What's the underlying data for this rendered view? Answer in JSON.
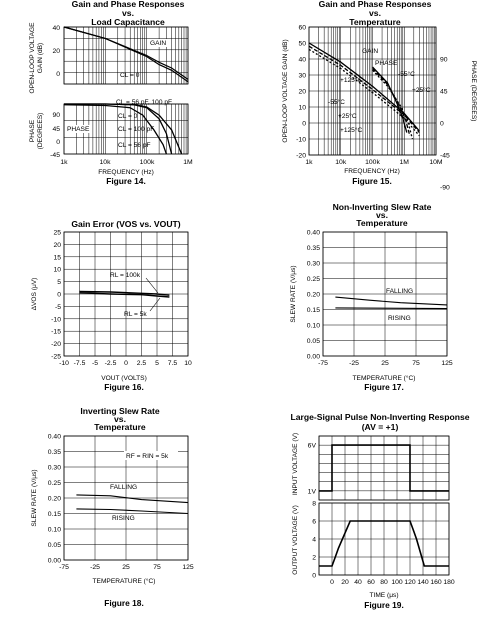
{
  "chart_data": [
    {
      "id": "fig14",
      "type": "line",
      "title": [
        "Gain and Phase Responses",
        "vs.",
        "Load Capacitance"
      ],
      "figure": "Figure 14.",
      "xlabel": "FREQUENCY (Hz)",
      "xscale": "log",
      "xlim": [
        1000,
        1000000
      ],
      "x_ticks": [
        "1k",
        "10k",
        "100k",
        "1M"
      ],
      "top": {
        "ylabel": [
          "OPEN-LOOP VOLTAGE",
          "GAIN (dB)"
        ],
        "ylim": [
          -10,
          40
        ],
        "y_ticks": [
          "40",
          "20",
          "0"
        ],
        "series": [
          {
            "x": [
              1000,
              10000,
              100000,
              200000,
              400000,
              1000000
            ],
            "values": [
              40,
              30,
              14,
              7,
              2,
              -8
            ]
          },
          {
            "x": [
              1000,
              10000,
              100000,
              200000,
              400000,
              1000000
            ],
            "values": [
              40,
              30,
              15,
              9,
              4,
              -6
            ]
          }
        ]
      },
      "bottom": {
        "ylabel": [
          "PHASE",
          "(DEGREES)"
        ],
        "ylim": [
          -45,
          90
        ],
        "y_ticks": [
          "90",
          "45",
          "0",
          "-45"
        ],
        "series": [
          {
            "x": [
              1000,
              10000,
              50000,
              100000,
              200000,
              400000,
              700000
            ],
            "values": [
              90,
              90,
              88,
              82,
              60,
              20,
              -45
            ]
          },
          {
            "x": [
              1000,
              10000,
              50000,
              100000,
              200000,
              300000,
              400000
            ],
            "values": [
              90,
              90,
              88,
              80,
              50,
              10,
              -45
            ]
          },
          {
            "x": [
              1000,
              10000,
              40000,
              80000,
              150000,
              250000,
              300000
            ],
            "values": [
              88,
              86,
              80,
              60,
              20,
              -20,
              -45
            ]
          }
        ]
      },
      "annotations": [
        "GAIN",
        "PHASE",
        "CL = 0",
        "CL = 56 pF, 100 pF",
        "CL = 100 pF",
        "CL = 56 pF",
        "CL = 0"
      ]
    },
    {
      "id": "fig15",
      "type": "line",
      "title": [
        "Gain and Phase Responses",
        "vs.",
        "Temperature"
      ],
      "figure": "Figure 15.",
      "xlabel": "FREQUENCY (Hz)",
      "xscale": "log",
      "xlim": [
        1000,
        10000000
      ],
      "x_ticks": [
        "1k",
        "10k",
        "100k",
        "1M",
        "10M"
      ],
      "ylabel": "OPEN-LOOP VOLTAGE GAIN (dB)",
      "ylim": [
        -20,
        60
      ],
      "y_ticks": [
        "60",
        "50",
        "40",
        "30",
        "20",
        "10",
        "0",
        "-10",
        "-20"
      ],
      "y2label": "PHASE (DEGREES)",
      "y2_ticks": [
        "90",
        "45",
        "0",
        "-45",
        "-90"
      ],
      "series": [
        {
          "name": "-55°C",
          "x": [
            1000,
            10000,
            100000,
            1000000,
            3000000
          ],
          "values": [
            50,
            38,
            23,
            6,
            -5
          ]
        },
        {
          "name": "+25°C",
          "x": [
            1000,
            10000,
            100000,
            1000000,
            3000000
          ],
          "values": [
            48,
            36,
            21,
            5,
            -6
          ]
        },
        {
          "name": "+125°C",
          "x": [
            1000,
            10000,
            100000,
            1000000,
            3000000
          ],
          "values": [
            46,
            34,
            19,
            3,
            -8
          ]
        }
      ],
      "annotations": [
        "GAIN",
        "PHASE",
        "-55°C",
        "+25°C",
        "+125°C",
        "-55°C",
        "+25°C",
        "+125°C"
      ]
    },
    {
      "id": "fig16",
      "type": "line",
      "title": "Gain Error (VOS vs. VOUT)",
      "figure": "Figure 16.",
      "xlabel": "VOUT (VOLTS)",
      "ylabel": "ΔVOS (μV)",
      "xlim": [
        -10,
        10
      ],
      "ylim": [
        -25,
        25
      ],
      "x_ticks": [
        "-10",
        "-7.5",
        "-5",
        "-2.5",
        "0",
        "2.5",
        "5",
        "7.5",
        "10"
      ],
      "y_ticks": [
        "25",
        "20",
        "15",
        "10",
        "5",
        "0",
        "-5",
        "-10",
        "-15",
        "-20",
        "-25"
      ],
      "series": [
        {
          "name": "RL = 100k",
          "x": [
            -7.5,
            -2.5,
            2.5,
            5,
            7
          ],
          "values": [
            1,
            0.8,
            0.3,
            0,
            -0.5
          ]
        },
        {
          "name": "RL = 5k",
          "x": [
            -7.5,
            -2.5,
            2.5,
            5,
            7
          ],
          "values": [
            0.5,
            0,
            -0.3,
            -0.8,
            -1.2
          ]
        }
      ],
      "annotations": [
        "RL = 100k",
        "RL = 5k"
      ]
    },
    {
      "id": "fig17",
      "type": "line",
      "title": [
        "Non-Inverting Slew Rate",
        "vs.",
        "Temperature"
      ],
      "figure": "Figure 17.",
      "xlabel": "TEMPERATURE (°C)",
      "ylabel": "SLEW RATE (V/μs)",
      "xlim": [
        -75,
        125
      ],
      "ylim": [
        0,
        0.4
      ],
      "x_ticks": [
        "-75",
        "-25",
        "25",
        "75",
        "125"
      ],
      "y_ticks": [
        "0.40",
        "0.35",
        "0.30",
        "0.25",
        "0.20",
        "0.15",
        "0.10",
        "0.05",
        "0.00"
      ],
      "series": [
        {
          "name": "FALLING",
          "x": [
            -55,
            0,
            50,
            125
          ],
          "values": [
            0.19,
            0.18,
            0.172,
            0.165
          ]
        },
        {
          "name": "RISING",
          "x": [
            -55,
            125
          ],
          "values": [
            0.155,
            0.153
          ]
        }
      ]
    },
    {
      "id": "fig18",
      "type": "line",
      "title": [
        "Inverting Slew Rate",
        "vs.",
        "Temperature"
      ],
      "figure": "Figure 18.",
      "xlabel": "TEMPERATURE (°C)",
      "ylabel": "SLEW RATE (V/μs)",
      "xlim": [
        -75,
        125
      ],
      "ylim": [
        0,
        0.4
      ],
      "x_ticks": [
        "-75",
        "-25",
        "25",
        "75",
        "125"
      ],
      "y_ticks": [
        "0.40",
        "0.35",
        "0.30",
        "0.25",
        "0.20",
        "0.15",
        "0.10",
        "0.05",
        "0.00"
      ],
      "series": [
        {
          "name": "FALLING",
          "x": [
            -55,
            0,
            50,
            125
          ],
          "values": [
            0.21,
            0.207,
            0.195,
            0.185
          ]
        },
        {
          "name": "RISING",
          "x": [
            -55,
            0,
            50,
            125
          ],
          "values": [
            0.165,
            0.163,
            0.158,
            0.15
          ]
        }
      ],
      "annotations": [
        "RF = RIN = 5k"
      ]
    },
    {
      "id": "fig19",
      "type": "line",
      "title": [
        "Large-Signal Pulse Non-Inverting Response",
        "(AV = +1)"
      ],
      "figure": "Figure 19.",
      "xlabel": "TIME (μs)",
      "xlim": [
        -20,
        180
      ],
      "x_ticks": [
        "0",
        "20",
        "40",
        "60",
        "80",
        "100",
        "120",
        "140",
        "160",
        "180"
      ],
      "top": {
        "ylabel": "INPUT VOLTAGE (V)",
        "ylim": [
          0,
          7
        ],
        "y_ticks": [
          "6V",
          "1V"
        ],
        "series": [
          {
            "x": [
              -20,
              0,
              0,
              120,
              120,
              180
            ],
            "values": [
              1,
              1,
              6,
              6,
              1,
              1
            ]
          }
        ]
      },
      "bottom": {
        "ylabel": "OUTPUT VOLTAGE (V)",
        "ylim": [
          0,
          8
        ],
        "y_ticks": [
          "8",
          "6",
          "4",
          "2",
          "0"
        ],
        "series": [
          {
            "x": [
              -20,
              0,
              5,
              10,
              28,
              120,
              125,
              130,
              142,
              180
            ],
            "values": [
              1,
              1,
              2,
              3,
              6,
              6,
              5,
              4,
              1,
              1
            ]
          }
        ]
      }
    }
  ]
}
